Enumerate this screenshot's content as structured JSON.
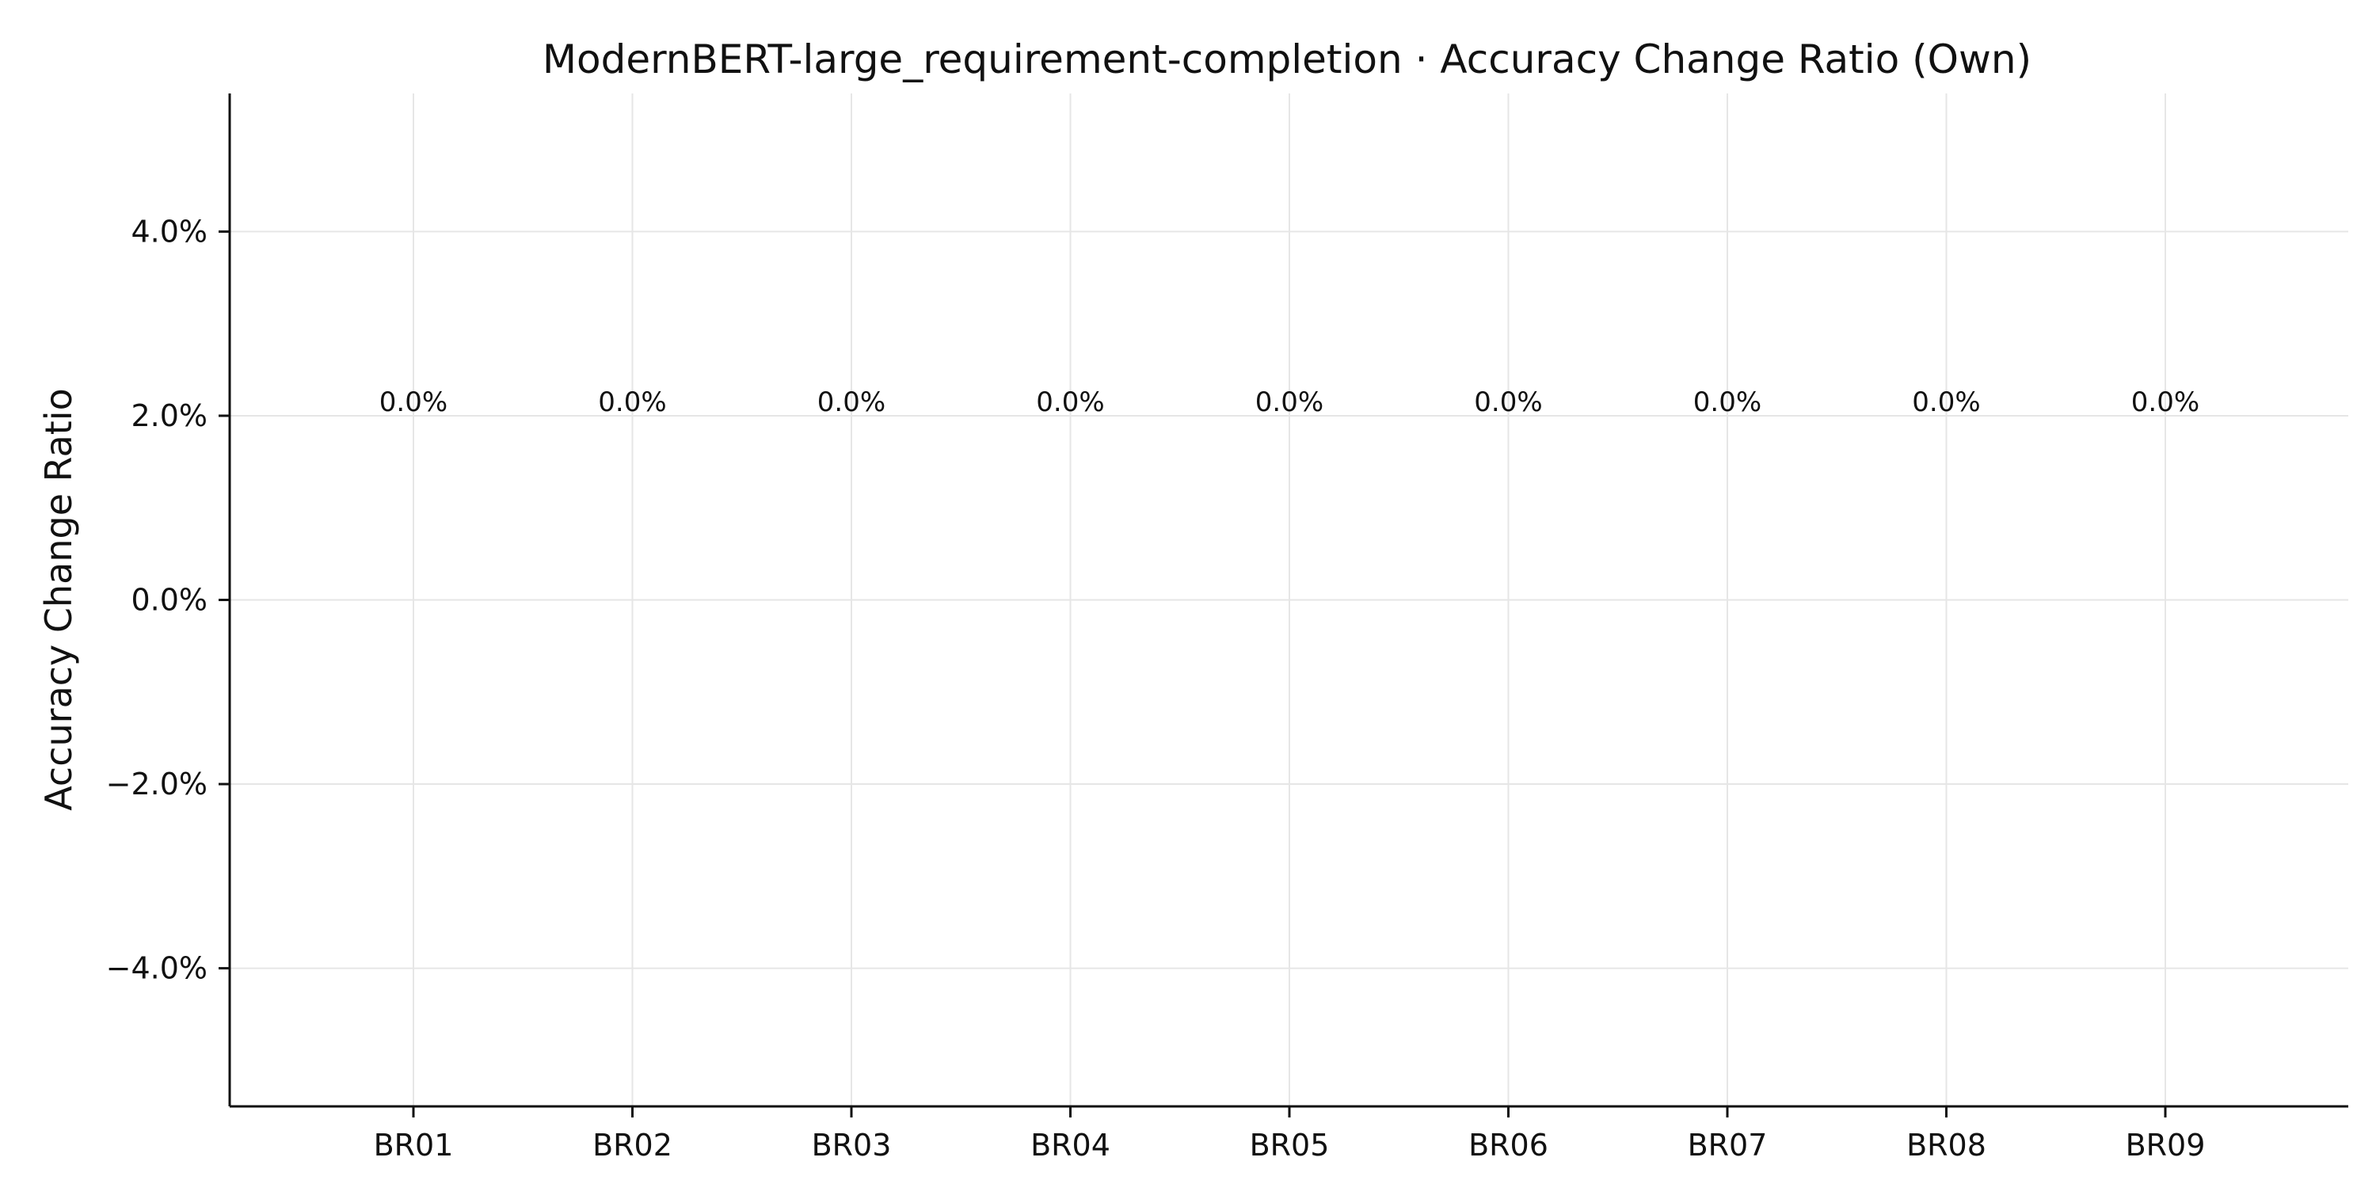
{
  "chart_data": {
    "type": "bar",
    "title": "ModernBERT-large_requirement-completion · Accuracy Change Ratio (Own)",
    "xlabel": "",
    "ylabel": "Accuracy Change Ratio",
    "categories": [
      "BR01",
      "BR02",
      "BR03",
      "BR04",
      "BR05",
      "BR06",
      "BR07",
      "BR08",
      "BR09"
    ],
    "values": [
      0.0,
      0.0,
      0.0,
      0.0,
      0.0,
      0.0,
      0.0,
      0.0,
      0.0
    ],
    "data_labels": [
      "0.0%",
      "0.0%",
      "0.0%",
      "0.0%",
      "0.0%",
      "0.0%",
      "0.0%",
      "0.0%",
      "0.0%"
    ],
    "ylim": [
      -5.5,
      5.5
    ],
    "yticks": [
      -4,
      -2,
      0,
      2,
      4
    ],
    "ytick_labels": [
      "−4.0%",
      "−2.0%",
      "0.0%",
      "2.0%",
      "4.0%"
    ],
    "value_unit": "%",
    "grid": true,
    "legend": "none"
  }
}
